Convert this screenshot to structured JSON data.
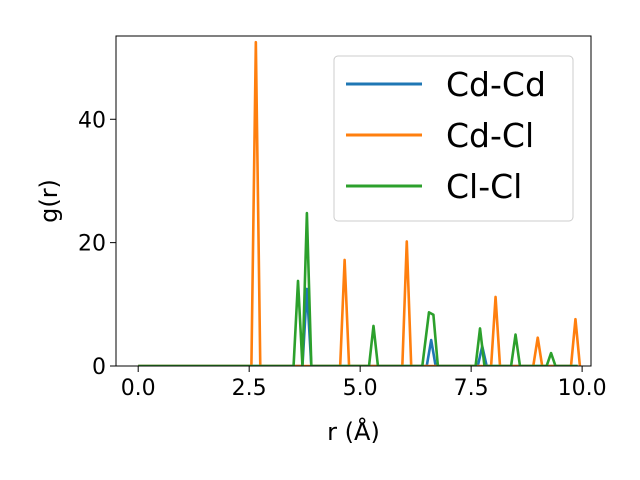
{
  "chart_data": {
    "type": "line",
    "xlabel": "r (Å)",
    "ylabel": "g(r)",
    "xlim": [
      -0.5,
      10.2
    ],
    "ylim": [
      0,
      53.5
    ],
    "xticks": [
      {
        "value": 0.0,
        "label": "0.0"
      },
      {
        "value": 2.5,
        "label": "2.5"
      },
      {
        "value": 5.0,
        "label": "5.0"
      },
      {
        "value": 7.5,
        "label": "7.5"
      },
      {
        "value": 10.0,
        "label": "10.0"
      }
    ],
    "yticks": [
      {
        "value": 0,
        "label": "0"
      },
      {
        "value": 20,
        "label": "20"
      },
      {
        "value": 40,
        "label": "40"
      }
    ],
    "legend_position": "top-right",
    "series": [
      {
        "name": "Cd-Cd",
        "color": "#1f77b4",
        "x": [
          0.0,
          3.7,
          3.8,
          3.9,
          6.5,
          6.6,
          6.7,
          7.65,
          7.75,
          7.85,
          9.9
        ],
        "y": [
          0,
          0,
          12.5,
          0,
          0,
          4.2,
          0,
          0,
          3.2,
          0,
          0
        ]
      },
      {
        "name": "Cd-Cl",
        "color": "#ff7f0e",
        "x": [
          0.0,
          2.55,
          2.65,
          2.75,
          4.55,
          4.65,
          4.75,
          5.95,
          6.05,
          6.15,
          7.95,
          8.05,
          8.15,
          8.9,
          9.0,
          9.1,
          9.75,
          9.85,
          9.95
        ],
        "y": [
          0,
          0,
          52.5,
          0,
          0,
          17.2,
          0,
          0,
          20.2,
          0,
          0,
          11.2,
          0,
          0,
          4.6,
          0,
          0,
          7.6,
          0
        ]
      },
      {
        "name": "Cl-Cl",
        "color": "#2ca02c",
        "x": [
          0.0,
          3.5,
          3.6,
          3.7,
          3.8,
          3.9,
          5.2,
          5.3,
          5.4,
          6.4,
          6.55,
          6.65,
          6.75,
          7.6,
          7.7,
          7.8,
          8.4,
          8.5,
          8.6,
          9.2,
          9.3,
          9.4,
          9.9
        ],
        "y": [
          0,
          0,
          13.8,
          0,
          24.8,
          0,
          0,
          6.5,
          0,
          0,
          8.7,
          8.3,
          0,
          0,
          6.1,
          0,
          0,
          5.1,
          0,
          0,
          2.1,
          0,
          0
        ]
      }
    ]
  }
}
